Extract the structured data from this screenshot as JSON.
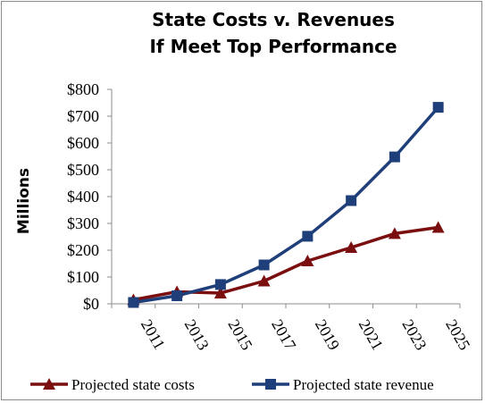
{
  "chart_data": {
    "type": "line",
    "title": [
      "State Costs v. Revenues",
      "If Meet Top Performance"
    ],
    "ylabel": "Millions",
    "xlabel": "",
    "categories": [
      "2011",
      "2013",
      "2015",
      "2017",
      "2019",
      "2021",
      "2023",
      "2025"
    ],
    "ylim": [
      0,
      800
    ],
    "yticks": [
      0,
      100,
      200,
      300,
      400,
      500,
      600,
      700,
      800
    ],
    "ytick_labels": [
      "$0",
      "$100",
      "$200",
      "$300",
      "$400",
      "$500",
      "$600",
      "$700",
      "$800"
    ],
    "grid": false,
    "legend_position": "bottom",
    "series": [
      {
        "name": "Projected state costs",
        "marker": "triangle",
        "color": "#7b0f0f",
        "values": [
          15,
          45,
          40,
          85,
          160,
          210,
          262,
          285
        ]
      },
      {
        "name": "Projected state revenue",
        "marker": "square",
        "color": "#1f3f7a",
        "values": [
          5,
          30,
          72,
          145,
          252,
          385,
          548,
          733
        ]
      }
    ]
  }
}
